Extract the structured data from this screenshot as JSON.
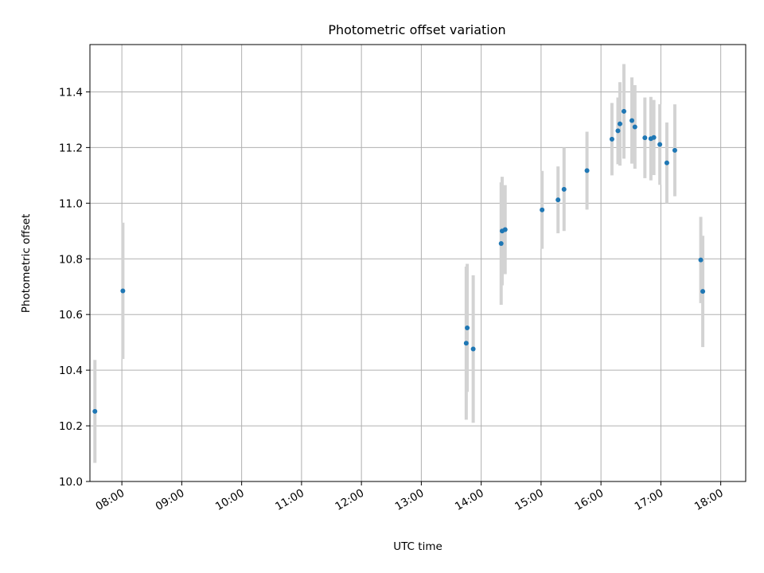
{
  "chart_data": {
    "type": "scatter",
    "title": "Photometric offset variation",
    "xlabel": "UTC time",
    "ylabel": "Photometric offset",
    "xlim": [
      "07:28",
      "18:25"
    ],
    "ylim": [
      10.0,
      11.57
    ],
    "grid": true,
    "x_tick_labels": [
      "08:00",
      "09:00",
      "10:00",
      "11:00",
      "12:00",
      "13:00",
      "14:00",
      "15:00",
      "16:00",
      "17:00",
      "18:00"
    ],
    "y_ticks": [
      10.0,
      10.2,
      10.4,
      10.6,
      10.8,
      11.0,
      11.2,
      11.4
    ],
    "y_tick_labels": [
      "10.0",
      "10.2",
      "10.4",
      "10.6",
      "10.8",
      "11.0",
      "11.2",
      "11.4"
    ],
    "series": [
      {
        "marker_color": "#1f77b4",
        "errorbar_color": "#d3d3d3",
        "points": [
          {
            "x": "07:33",
            "y": 10.252,
            "err": 0.185
          },
          {
            "x": "08:01",
            "y": 10.685,
            "err": 0.245
          },
          {
            "x": "13:45",
            "y": 10.497,
            "err": 0.275
          },
          {
            "x": "13:46",
            "y": 10.552,
            "err": 0.23
          },
          {
            "x": "13:52",
            "y": 10.476,
            "err": 0.265
          },
          {
            "x": "14:20",
            "y": 10.855,
            "err": 0.22
          },
          {
            "x": "14:21",
            "y": 10.9,
            "err": 0.195
          },
          {
            "x": "14:24",
            "y": 10.905,
            "err": 0.16
          },
          {
            "x": "15:01",
            "y": 10.976,
            "err": 0.14
          },
          {
            "x": "15:17",
            "y": 11.012,
            "err": 0.12
          },
          {
            "x": "15:23",
            "y": 11.05,
            "err": 0.15
          },
          {
            "x": "15:46",
            "y": 11.117,
            "err": 0.14
          },
          {
            "x": "16:11",
            "y": 11.23,
            "err": 0.13
          },
          {
            "x": "16:17",
            "y": 11.26,
            "err": 0.12
          },
          {
            "x": "16:19",
            "y": 11.285,
            "err": 0.15
          },
          {
            "x": "16:23",
            "y": 11.33,
            "err": 0.17
          },
          {
            "x": "16:31",
            "y": 11.297,
            "err": 0.155
          },
          {
            "x": "16:34",
            "y": 11.274,
            "err": 0.15
          },
          {
            "x": "16:44",
            "y": 11.235,
            "err": 0.145
          },
          {
            "x": "16:50",
            "y": 11.232,
            "err": 0.15
          },
          {
            "x": "16:53",
            "y": 11.236,
            "err": 0.135
          },
          {
            "x": "16:59",
            "y": 11.211,
            "err": 0.145
          },
          {
            "x": "17:06",
            "y": 11.145,
            "err": 0.145
          },
          {
            "x": "17:14",
            "y": 11.19,
            "err": 0.165
          },
          {
            "x": "17:40",
            "y": 10.796,
            "err": 0.155
          },
          {
            "x": "17:42",
            "y": 10.683,
            "err": 0.2
          }
        ]
      }
    ]
  }
}
